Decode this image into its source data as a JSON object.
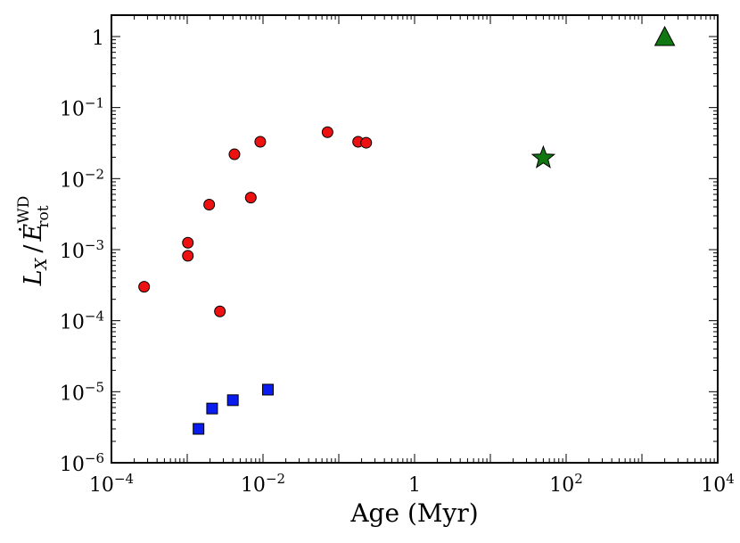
{
  "chart_data": {
    "type": "scatter",
    "title": "",
    "xlabel": "Age (Myr)",
    "ylabel": {
      "main": "L",
      "sub_x": "X",
      "slash": "/",
      "e": "Ė",
      "sup": "WD",
      "sub_rot": "rot"
    },
    "xscale": "log",
    "yscale": "log",
    "xlim": [
      0.0001,
      10000
    ],
    "ylim": [
      1e-06,
      2
    ],
    "xticks": [
      {
        "value": 0.0001,
        "base": "10",
        "exp": "−4"
      },
      {
        "value": 0.01,
        "base": "10",
        "exp": "−2"
      },
      {
        "value": 1,
        "base": "1",
        "exp": ""
      },
      {
        "value": 100,
        "base": "10",
        "exp": "2"
      },
      {
        "value": 10000,
        "base": "10",
        "exp": "4"
      }
    ],
    "yticks": [
      {
        "value": 1e-06,
        "base": "10",
        "exp": "−6"
      },
      {
        "value": 1e-05,
        "base": "10",
        "exp": "−5"
      },
      {
        "value": 0.0001,
        "base": "10",
        "exp": "−4"
      },
      {
        "value": 0.001,
        "base": "10",
        "exp": "−3"
      },
      {
        "value": 0.01,
        "base": "10",
        "exp": "−2"
      },
      {
        "value": 0.1,
        "base": "10",
        "exp": "−1"
      },
      {
        "value": 1,
        "base": "1",
        "exp": ""
      }
    ],
    "series": [
      {
        "name": "circles",
        "marker": "circle",
        "color": "#ee1111",
        "points": [
          {
            "x": 0.00027,
            "y": 0.0003
          },
          {
            "x": 0.00102,
            "y": 0.00125
          },
          {
            "x": 0.00102,
            "y": 0.00082
          },
          {
            "x": 0.00195,
            "y": 0.0043
          },
          {
            "x": 0.0027,
            "y": 0.000135
          },
          {
            "x": 0.0042,
            "y": 0.022
          },
          {
            "x": 0.0069,
            "y": 0.0054
          },
          {
            "x": 0.0092,
            "y": 0.033
          },
          {
            "x": 0.071,
            "y": 0.045
          },
          {
            "x": 0.18,
            "y": 0.033
          },
          {
            "x": 0.23,
            "y": 0.032
          }
        ]
      },
      {
        "name": "squares",
        "marker": "square",
        "color": "#0a1cf0",
        "points": [
          {
            "x": 0.00141,
            "y": 3e-06
          },
          {
            "x": 0.00213,
            "y": 5.8e-06
          },
          {
            "x": 0.004,
            "y": 7.6e-06
          },
          {
            "x": 0.0116,
            "y": 1.07e-05
          }
        ]
      },
      {
        "name": "star",
        "marker": "star",
        "color": "#117711",
        "points": [
          {
            "x": 50,
            "y": 0.0195
          }
        ]
      },
      {
        "name": "triangle",
        "marker": "triangle",
        "color": "#117711",
        "points": [
          {
            "x": 2000,
            "y": 0.97
          }
        ]
      }
    ]
  }
}
